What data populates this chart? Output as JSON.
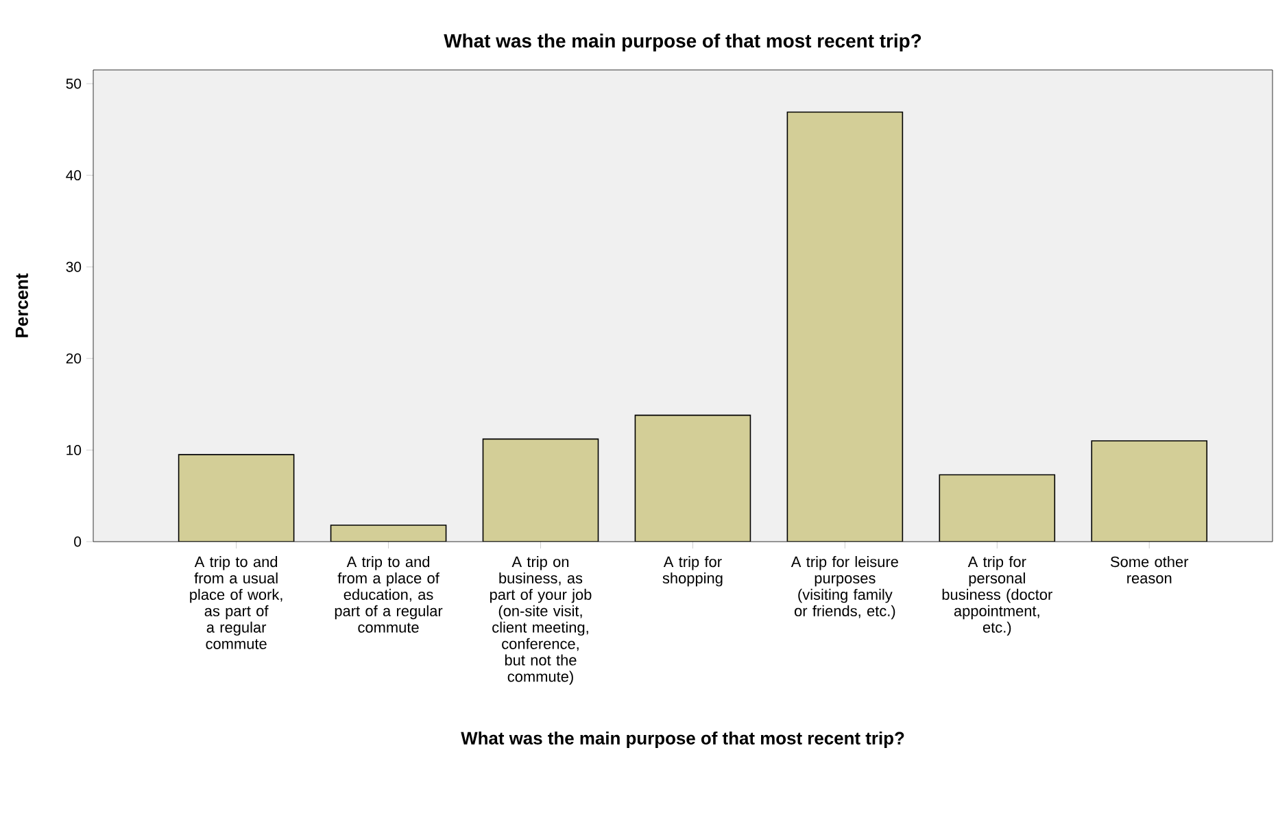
{
  "chart_data": {
    "type": "bar",
    "title": "What was the main purpose of that most recent trip?",
    "xlabel": "What was the main purpose of that most recent trip?",
    "ylabel": "Percent",
    "categories": [
      "A trip to and from a usual place of work, as part of a regular commute",
      "A trip to and from a place of education, as part of a regular commute",
      "A trip on business, as part of your job (on-site visit, client meeting, conference, but not the commute)",
      "A trip for shopping",
      "A trip for leisure purposes (visiting family or friends, etc.)",
      "A trip for personal business (doctor appointment, etc.)",
      "Some other reason"
    ],
    "values": [
      9.5,
      1.8,
      11.2,
      13.8,
      46.9,
      7.3,
      11.0
    ],
    "color": "#d3ce97",
    "ylim": [
      0,
      51.5
    ],
    "yticks": [
      0,
      10,
      20,
      30,
      40,
      50
    ],
    "grid": false
  }
}
